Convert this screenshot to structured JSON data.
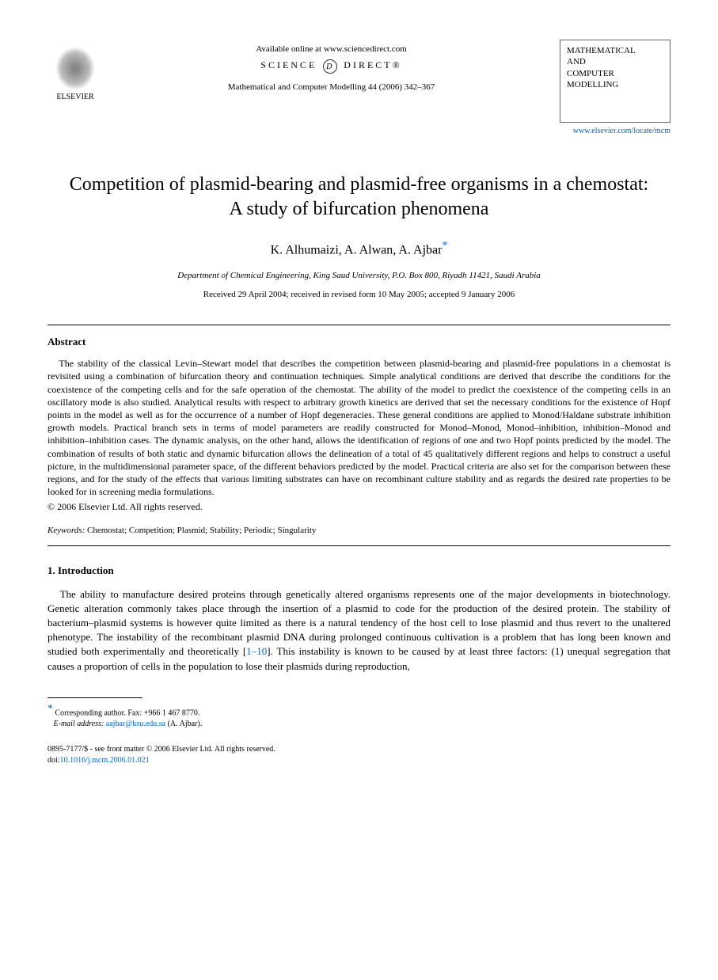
{
  "header": {
    "publisher_name": "ELSEVIER",
    "available_text": "Available online at www.sciencedirect.com",
    "science_direct_left": "SCIENCE",
    "science_direct_right": "DIRECT®",
    "journal_reference": "Mathematical and Computer Modelling 44 (2006) 342–367",
    "journal_box_line1": "MATHEMATICAL",
    "journal_box_line2": "AND",
    "journal_box_line3": "COMPUTER",
    "journal_box_line4": "MODELLING",
    "journal_url": "www.elsevier.com/locate/mcm"
  },
  "title": "Competition of plasmid-bearing and plasmid-free organisms in a chemostat: A study of bifurcation phenomena",
  "authors": "K. Alhumaizi, A. Alwan, A. Ajbar",
  "corr_symbol": "*",
  "affiliation": "Department of Chemical Engineering, King Saud University, P.O. Box 800, Riyadh 11421, Saudi Arabia",
  "dates": "Received 29 April 2004; received in revised form 10 May 2005; accepted 9 January 2006",
  "abstract": {
    "heading": "Abstract",
    "text": "The stability of the classical Levin–Stewart model that describes the competition between plasmid-bearing and plasmid-free populations in a chemostat is revisited using a combination of bifurcation theory and continuation techniques. Simple analytical conditions are derived that describe the conditions for the coexistence of the competing cells and for the safe operation of the chemostat. The ability of the model to predict the coexistence of the competing cells in an oscillatory mode is also studied. Analytical results with respect to arbitrary growth kinetics are derived that set the necessary conditions for the existence of Hopf points in the model as well as for the occurrence of a number of Hopf degeneracies. These general conditions are applied to Monod/Haldane substrate inhibition growth models. Practical branch sets in terms of model parameters are readily constructed for Monod–Monod, Monod–inhibition, inhibition–Monod and inhibition–inhibition cases. The dynamic analysis, on the other hand, allows the identification of regions of one and two Hopf points predicted by the model. The combination of results of both static and dynamic bifurcation allows the delineation of a total of 45 qualitatively different regions and helps to construct a useful picture, in the multidimensional parameter space, of the different behaviors predicted by the model. Practical criteria are also set for the comparison between these regions, and for the study of the effects that various limiting substrates can have on recombinant culture stability and as regards the desired rate properties to be looked for in screening media formulations.",
    "copyright": "© 2006 Elsevier Ltd. All rights reserved."
  },
  "keywords": {
    "label": "Keywords:",
    "text": " Chemostat; Competition; Plasmid; Stability; Periodic; Singularity"
  },
  "section1": {
    "heading": "1.  Introduction",
    "para1_part1": "The ability to manufacture desired proteins through genetically altered organisms represents one of the major developments in biotechnology. Genetic alteration commonly takes place through the insertion of a plasmid to code for the production of the desired protein. The stability of bacterium–plasmid systems is however quite limited as there is a natural tendency of the host cell to lose plasmid and thus revert to the unaltered phenotype. The instability of the recombinant plasmid DNA during prolonged continuous cultivation is a problem that has long been known and studied both experimentally and theoretically [",
    "ref1": "1–10",
    "para1_part2": "]. This instability is known to be caused by at least three factors: (1) unequal segregation that causes a proportion of cells in the population to lose their plasmids during reproduction,"
  },
  "footnote": {
    "corr_text": "Corresponding author. Fax: +966 1 467 8770.",
    "email_label": "E-mail address:",
    "email": "aajbar@ksu.edu.sa",
    "email_author": " (A. Ajbar)."
  },
  "footer": {
    "issn_line": "0895-7177/$ - see front matter © 2006 Elsevier Ltd. All rights reserved.",
    "doi_label": "doi:",
    "doi": "10.1016/j.mcm.2006.01.021"
  },
  "colors": {
    "link": "#0066cc",
    "text": "#000000",
    "background": "#ffffff"
  }
}
